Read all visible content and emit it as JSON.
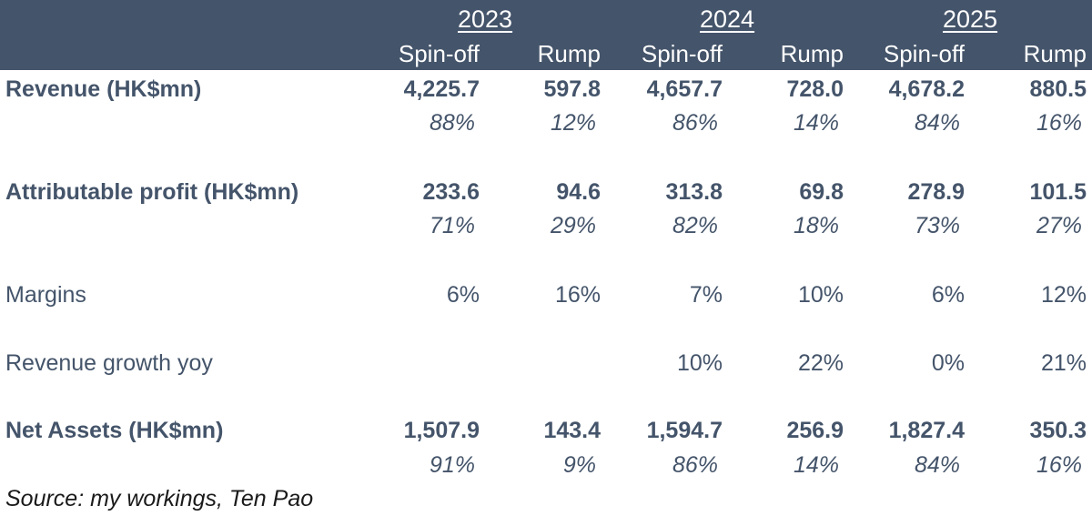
{
  "header": {
    "years": [
      "2023",
      "2024",
      "2025"
    ],
    "columns": [
      "Spin-off",
      "Rump",
      "Spin-off",
      "Rump",
      "Spin-off",
      "Rump"
    ]
  },
  "rows": [
    {
      "label": "Revenue (HK$mn)",
      "values": [
        "4,225.7",
        "597.8",
        "4,657.7",
        "728.0",
        "4,678.2",
        "880.5"
      ],
      "shares": [
        "88%",
        "12%",
        "86%",
        "14%",
        "84%",
        "16%"
      ]
    },
    {
      "label": "Attributable profit (HK$mn)",
      "values": [
        "233.6",
        "94.6",
        "313.8",
        "69.8",
        "278.9",
        "101.5"
      ],
      "shares": [
        "71%",
        "29%",
        "82%",
        "18%",
        "73%",
        "27%"
      ]
    },
    {
      "label": "Margins",
      "values": [
        "6%",
        "16%",
        "7%",
        "10%",
        "6%",
        "12%"
      ]
    },
    {
      "label": "Revenue growth yoy",
      "values": [
        "",
        "",
        "10%",
        "22%",
        "0%",
        "21%"
      ]
    },
    {
      "label": "Net Assets (HK$mn)",
      "values": [
        "1,507.9",
        "143.4",
        "1,594.7",
        "256.9",
        "1,827.4",
        "350.3"
      ],
      "shares": [
        "91%",
        "9%",
        "86%",
        "14%",
        "84%",
        "16%"
      ]
    }
  ],
  "source": "Source: my workings, Ten Pao",
  "colors": {
    "header_background": "#44546a",
    "header_text": "#ffffff",
    "body_text": "#44546a"
  }
}
